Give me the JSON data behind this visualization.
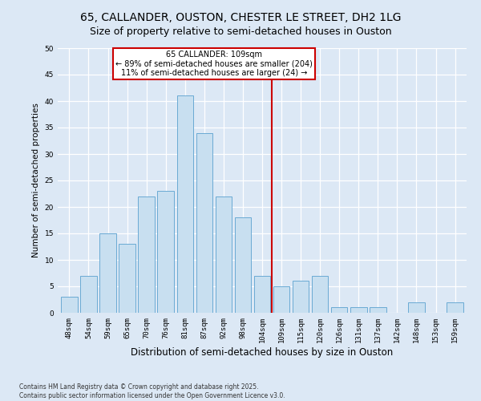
{
  "title": "65, CALLANDER, OUSTON, CHESTER LE STREET, DH2 1LG",
  "subtitle": "Size of property relative to semi-detached houses in Ouston",
  "xlabel": "Distribution of semi-detached houses by size in Ouston",
  "ylabel": "Number of semi-detached properties",
  "categories": [
    "48sqm",
    "54sqm",
    "59sqm",
    "65sqm",
    "70sqm",
    "76sqm",
    "81sqm",
    "87sqm",
    "92sqm",
    "98sqm",
    "104sqm",
    "109sqm",
    "115sqm",
    "120sqm",
    "126sqm",
    "131sqm",
    "137sqm",
    "142sqm",
    "148sqm",
    "153sqm",
    "159sqm"
  ],
  "values": [
    3,
    7,
    15,
    13,
    22,
    23,
    41,
    34,
    22,
    18,
    7,
    5,
    6,
    7,
    1,
    1,
    1,
    0,
    2,
    0,
    2
  ],
  "bar_color": "#c8dff0",
  "bar_edge_color": "#6aaad4",
  "bar_edge_width": 0.7,
  "vline_color": "#cc0000",
  "annotation_title": "65 CALLANDER: 109sqm",
  "annotation_line1": "← 89% of semi-detached houses are smaller (204)",
  "annotation_line2": "11% of semi-detached houses are larger (24) →",
  "annotation_box_color": "#cc0000",
  "ylim": [
    0,
    50
  ],
  "yticks": [
    0,
    5,
    10,
    15,
    20,
    25,
    30,
    35,
    40,
    45,
    50
  ],
  "background_color": "#dce8f5",
  "plot_bg_color": "#dce8f5",
  "fig_bg_color": "#dce8f5",
  "grid_color": "#ffffff",
  "footnote1": "Contains HM Land Registry data © Crown copyright and database right 2025.",
  "footnote2": "Contains public sector information licensed under the Open Government Licence v3.0.",
  "title_fontsize": 10,
  "subtitle_fontsize": 9,
  "xlabel_fontsize": 8.5,
  "ylabel_fontsize": 7.5,
  "tick_fontsize": 6.5,
  "annot_fontsize": 7,
  "footnote_fontsize": 5.5
}
